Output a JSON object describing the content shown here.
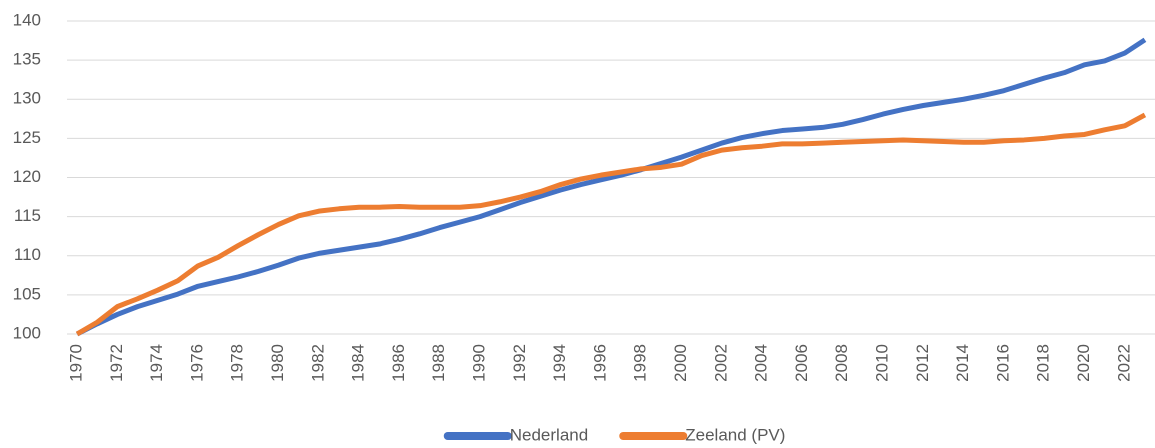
{
  "chart_data": {
    "type": "line",
    "categories": [
      "1970",
      null,
      "1972",
      null,
      "1974",
      null,
      "1976",
      null,
      "1978",
      null,
      "1980",
      null,
      "1982",
      null,
      "1984",
      null,
      "1986",
      null,
      "1988",
      null,
      "1990",
      null,
      "1992",
      null,
      "1994",
      null,
      "1996",
      null,
      "1998",
      null,
      "2000",
      null,
      "2002",
      null,
      "2004",
      null,
      "2006",
      null,
      "2008",
      null,
      "2010",
      null,
      "2012",
      null,
      "2014",
      null,
      "2016",
      null,
      "2018",
      null,
      "2020",
      null,
      "2022",
      null
    ],
    "series": [
      {
        "name": "Nederland",
        "color": "#4472c4",
        "values": [
          100,
          101.3,
          102.5,
          103.5,
          104.3,
          105.1,
          106.1,
          106.7,
          107.3,
          108,
          108.8,
          109.7,
          110.3,
          110.7,
          111.1,
          111.5,
          112.1,
          112.8,
          113.6,
          114.3,
          115,
          115.9,
          116.8,
          117.6,
          118.4,
          119.1,
          119.7,
          120.3,
          121,
          121.8,
          122.6,
          123.5,
          124.4,
          125.1,
          125.6,
          126,
          126.2,
          126.4,
          126.8,
          127.4,
          128.1,
          128.7,
          129.2,
          129.6,
          130,
          130.5,
          131.1,
          131.9,
          132.7,
          133.4,
          134.4,
          134.9,
          135.9,
          137.6
        ]
      },
      {
        "name": "Zeeland (PV)",
        "color": "#ed7d31",
        "values": [
          100,
          101.5,
          103.5,
          104.5,
          105.6,
          106.8,
          108.7,
          109.8,
          111.3,
          112.7,
          114,
          115.1,
          115.7,
          116,
          116.2,
          116.2,
          116.3,
          116.2,
          116.2,
          116.2,
          116.4,
          116.9,
          117.5,
          118.2,
          119.1,
          119.8,
          120.3,
          120.7,
          121.1,
          121.3,
          121.7,
          122.8,
          123.5,
          123.8,
          124,
          124.3,
          124.3,
          124.4,
          124.5,
          124.6,
          124.7,
          124.8,
          124.7,
          124.6,
          124.5,
          124.5,
          124.7,
          124.8,
          125,
          125.3,
          125.5,
          126.1,
          126.6,
          128
        ]
      }
    ],
    "ylim": [
      100,
      140
    ],
    "yticks": [
      100,
      105,
      110,
      115,
      120,
      125,
      130,
      135,
      140
    ],
    "grid": true,
    "legend": "bottom"
  }
}
